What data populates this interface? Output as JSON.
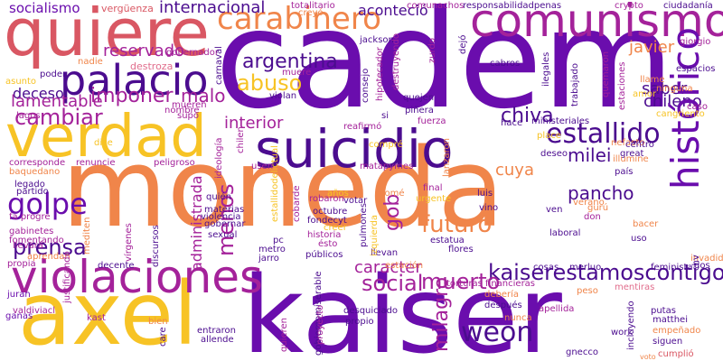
{
  "palette": {
    "purple": "#6a0dad",
    "deep_purple": "#4b0c8f",
    "magenta": "#a4229a",
    "orange": "#f0854a",
    "yellow": "#f7c325",
    "rose": "#d95763",
    "pink": "#e16d8c"
  },
  "words": {
    "cadem": "cadem",
    "moneda": "moneda",
    "kaiser": "kaiser",
    "axel": "axel",
    "quiere": "quiere",
    "comunismo": "comunismo",
    "suicidio": "suicidio",
    "verdad": "verdad",
    "palacio": "palacio",
    "carabinero": "carabinero",
    "violaciones": "violaciones",
    "historico": "histórico",
    "kaiserestamoscontigo": "kaiserestamoscontigo",
    "weon": "weon",
    "golpe": "golpe",
    "prensa": "prensa",
    "social": "social",
    "futuro": "futuro",
    "menos": "menos",
    "estallido": "estallido",
    "cambiar": "cambiar",
    "imponer": "imponer",
    "chiva": "chiva",
    "muerto": "muerto",
    "milagro": "milagro",
    "abuso": "abuso",
    "argentina": "argentina",
    "socialismo": "socialismo",
    "internacional": "internacional",
    "reservado": "reservado",
    "deceso": "deceso",
    "lamentable": "lamentable",
    "malo": "malo",
    "interior": "interior",
    "milei": "milei",
    "pancho": "pancho",
    "caracter": "caracter",
    "gob": "gob",
    "administrada": "administrada",
    "chileno": "chileno",
    "saber": "saber",
    "javier": "javier",
    "cuya": "cuya",
    "acontecio": "aconteció",
    "verguenza": "vergüenza",
    "poder": "poder",
    "nadie": "nadie",
    "destroza": "destroza",
    "gobernador": "gobernador",
    "asunto": "asunto",
    "lagos": "lagos",
    "mueren": "mueren",
    "nombre": "nombre",
    "supo": "supo",
    "dice": "dice",
    "renuncie": "renuncie",
    "peligroso": "peligroso",
    "ideologia": "ideología",
    "chilen": "chilen",
    "corresponde": "corresponde",
    "baquedano": "baquedano",
    "legado": "legado",
    "partido": "partido",
    "fa_progre": "fa progre",
    "gabinetes": "gabinetes",
    "fomentando": "fomentando",
    "propia": "propia",
    "llevara": "llevará",
    "juran": "juran",
    "ganas": "ganas",
    "valdiviacl": "valdiviacl",
    "quien": "quién",
    "materias": "materias",
    "violencia": "violencia",
    "gobernar": "gobernar",
    "sexual": "sexual",
    "virgenes": "vírgenes",
    "discursos": "discursos",
    "mediten": "mediten",
    "justificando": "justificando",
    "aprendan": "aprendan",
    "decente": "decente",
    "kast": "kast",
    "bien": "bien",
    "care": "care",
    "entraron": "entraron",
    "allende": "allende",
    "quieren": "quieren",
    "gobiernomiserable": "gobiernomiserable",
    "usen": "usen",
    "metro": "metro",
    "pc": "pc",
    "jarro": "jarro",
    "estallidodelictual": "estallidodelictual",
    "cobarde": "cobarde",
    "robaron": "robaron",
    "octubre": "octubre",
    "fondecyt": "fondecyt",
    "historia": "historia",
    "esto": "ésto",
    "publicos": "públicos",
    "compre": "compré",
    "matapymes": "matapymes",
    "anos": "años",
    "come": "comé",
    "votar": "votar",
    "creer": "creer",
    "izquierda": "izquierda",
    "pulmones": "pulmones",
    "proyecto": "proyecto",
    "desquiciado": "desquiciado",
    "propio": "propio",
    "llevan": "llevan",
    "estacion": "estación",
    "flores": "flores",
    "estatua": "estatua",
    "torturas_financieras": "torturas financieras",
    "deberia": "debería",
    "despues": "después",
    "nunca": "nunca",
    "apellida": "apellida",
    "luis": "luis",
    "vino": "vino",
    "urgente": "urgente",
    "final": "final",
    "totalitario": "totalitario",
    "creyo": "creyó",
    "jackson": "jackson",
    "consejo": "consejo",
    "hipotecador": "hipotecador",
    "destruyendo": "destruyendo",
    "quejen": "quejen",
    "pinera": "piñera",
    "lanzaron": "lanzaron",
    "fuerza": "fuerza",
    "si": "si",
    "reafirmo": "reafirmó",
    "muere": "muere",
    "violan": "violan",
    "carnaval": "carnaval",
    "zurdo": "zurdo",
    "dejo": "dejó",
    "comunachos": "comunachos",
    "responsabilidadpenas": "responsabilidadpenas",
    "crypto": "crypto",
    "ciudadania": "ciudadanía",
    "giorgio": "giorgio",
    "espacios": "espacios",
    "llame": "llame",
    "ninguna": "ninguna",
    "amor": "amor",
    "caso": "caso",
    "cangriento": "cangriento",
    "cabros": "cabros",
    "ilegales": "ilegales",
    "quemaron": "quemaron",
    "estaciones": "estaciones",
    "trabajado": "trabajado",
    "hace": "hace",
    "ministeriales": "ministeriales",
    "place": "place",
    "nefasto": "nefasto",
    "centro": "centro",
    "pais": "país",
    "deseo": "deseo",
    "great": "great",
    "illumine": "illumine",
    "verano": "verano",
    "ven": "ven",
    "don": "don",
    "guru": "gurú",
    "bacer": "bacer",
    "laboral": "laboral",
    "uso": "uso",
    "chv": "chv",
    "merluo": "merluo",
    "cosas": "cosas",
    "feminista": "feminista",
    "dos": "dos",
    "invadido": "invadido",
    "peso": "peso",
    "mentiras": "mentiras",
    "putas": "putas",
    "matthei": "matthei",
    "empenado": "empeñado",
    "siguen": "siguen",
    "incluyendo": "incluyendo",
    "work": "work",
    "voto": "voto",
    "gnecco": "gnecco",
    "cumplio": "cumplió"
  }
}
